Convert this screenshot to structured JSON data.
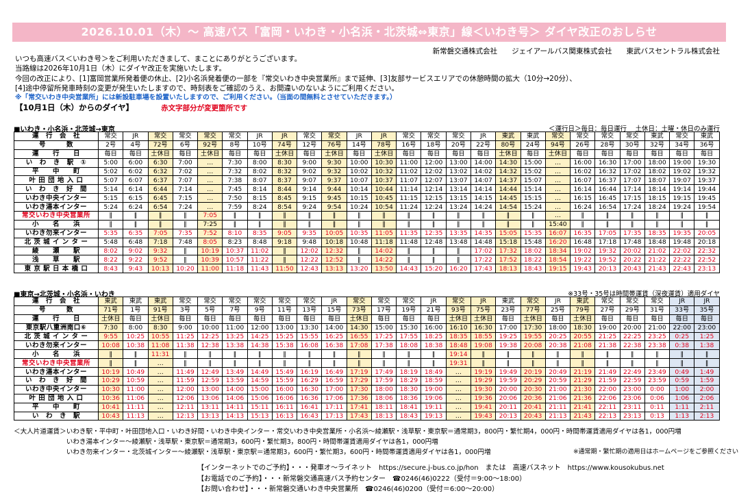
{
  "banner": "2026.10.01（木）～ 高速バス「富岡・いわき・小名浜・北茨城⇔東京」線＜いわき号＞ ダイヤ改正のおしらせ",
  "companies": "新常磐交通株式会社　　ジェイアールバス関東株式会社　　東武バスセントラル株式会社",
  "intro": [
    "いつも高速バス＜いわき号＞をご利用いただきまして、まことにありがとうございます。",
    "当路線は2026年10月1日（木）にダイヤ改正を実施いたします。",
    "今回の改正により、[1]富岡営業所発着便の休止、[2]小名浜発着便の一部を『常交いわき中央営業所』まで延伸、[3]友部サービスエリアでの休憩時間の拡大（10分→20分）、",
    "[4]途中停留所発車時刻の変更が発生いたしますので、時刻表をご確認のうえ、お間違いのないようにご利用ください。"
  ],
  "note_blue": "※「常交いわき中央営業所」には新設駐車場を設置いたしますので、ご利用ください。（当面の間無料とさせていただきます。）",
  "date_label": "【10月1日（木）からのダイヤ】",
  "red_hint": "赤文字部分が変更箇所です",
  "down": {
    "title": "■いわき・小名浜・北茨城→東京",
    "note": "＜運行日＞毎日：毎日運行　 土休日：土曜・休日のみ運行",
    "header_labels": [
      "運　行　会　社",
      "号　　　数",
      "運　　行　　日"
    ],
    "ops": [
      "常交",
      "JR",
      "常交",
      "常交",
      "常交",
      "常交",
      "JR",
      "JR",
      "常交",
      "常交",
      "JR",
      "JR",
      "常交",
      "常交",
      "常交",
      "JR",
      "東武",
      "東武",
      "常交",
      "常交",
      "常交",
      "常交",
      "東武",
      "常交",
      "東武"
    ],
    "nums": [
      "2号",
      "4号",
      "72号",
      "6号",
      "92号",
      "8号",
      "10号",
      "74号",
      "12号",
      "76号",
      "14号",
      "78号",
      "16号",
      "18号",
      "20号",
      "22号",
      "80号",
      "24号",
      "94号",
      "26号",
      "28号",
      "30号",
      "32号",
      "34号",
      "36号"
    ],
    "days": [
      "毎日",
      "毎日",
      "土休日",
      "毎日",
      "土休日",
      "毎日",
      "毎日",
      "土休日",
      "毎日",
      "土休日",
      "毎日",
      "土休日",
      "毎日",
      "毎日",
      "毎日",
      "毎日",
      "土休日",
      "毎日",
      "土休日",
      "毎日",
      "毎日",
      "毎日",
      "毎日",
      "毎日",
      "毎日"
    ],
    "hl": [
      2,
      4,
      7,
      9,
      11,
      16,
      18
    ],
    "stops": [
      {
        "name": "い　わ　き　駅　①",
        "red": false,
        "times": [
          "5:00",
          "6:00",
          "6:30",
          "7:00",
          "…",
          "7:30",
          "8:00",
          "8:30",
          "9:00",
          "9:30",
          "10:00",
          "10:30",
          "11:00",
          "12:00",
          "13:00",
          "14:00",
          "14:30",
          "15:00",
          "…",
          "16:00",
          "16:30",
          "17:00",
          "18:00",
          "19:00",
          "19:30"
        ],
        "redcells": []
      },
      {
        "name": "平　　中　　町",
        "red": false,
        "times": [
          "5:02",
          "6:02",
          "6:32",
          "7:02",
          "…",
          "7:32",
          "8:02",
          "8:32",
          "9:02",
          "9:32",
          "10:02",
          "10:32",
          "11:02",
          "12:02",
          "13:02",
          "14:02",
          "14:32",
          "15:02",
          "…",
          "16:02",
          "16:32",
          "17:02",
          "18:02",
          "19:02",
          "19:32"
        ],
        "redcells": []
      },
      {
        "name": "叶 田 団 地 入 口",
        "red": false,
        "times": [
          "5:07",
          "6:07",
          "6:37",
          "7:07",
          "…",
          "7:38",
          "8:07",
          "8:37",
          "9:07",
          "9:37",
          "10:07",
          "10:37",
          "11:07",
          "12:07",
          "13:07",
          "14:07",
          "14:37",
          "15:07",
          "…",
          "16:07",
          "16:37",
          "17:07",
          "18:07",
          "19:07",
          "19:37"
        ],
        "redcells": []
      },
      {
        "name": "い　わ　き　好　間",
        "red": false,
        "times": [
          "5:14",
          "6:14",
          "6:44",
          "7:14",
          "…",
          "7:45",
          "8:14",
          "8:44",
          "9:14",
          "9:44",
          "10:14",
          "10:44",
          "11:14",
          "12:14",
          "13:14",
          "14:14",
          "14:44",
          "15:14",
          "…",
          "16:14",
          "16:44",
          "17:14",
          "18:14",
          "19:14",
          "19:44"
        ],
        "redcells": []
      },
      {
        "name": "いわき中央インター",
        "red": false,
        "times": [
          "5:15",
          "6:15",
          "6:45",
          "7:15",
          "…",
          "7:50",
          "8:15",
          "8:45",
          "9:15",
          "9:45",
          "10:15",
          "10:45",
          "11:15",
          "12:15",
          "13:15",
          "14:15",
          "14:45",
          "15:15",
          "…",
          "16:15",
          "16:45",
          "17:15",
          "18:15",
          "19:15",
          "19:45"
        ],
        "redcells": []
      },
      {
        "name": "いわき湯本インター",
        "red": false,
        "times": [
          "5:24",
          "6:24",
          "6:54",
          "7:24",
          "…",
          "7:59",
          "8:24",
          "8:54",
          "9:24",
          "9:54",
          "10:24",
          "10:54",
          "11:24",
          "12:24",
          "13:24",
          "14:24",
          "14:54",
          "15:24",
          "…",
          "16:24",
          "16:54",
          "17:24",
          "18:24",
          "19:24",
          "19:54"
        ],
        "redcells": []
      },
      {
        "name": "常交いわき中央営業所",
        "red": true,
        "times": [
          "‖",
          "‖",
          "‖",
          "‖",
          "7:05",
          "‖",
          "‖",
          "‖",
          "‖",
          "‖",
          "‖",
          "‖",
          "‖",
          "‖",
          "‖",
          "‖",
          "‖",
          "‖",
          "…",
          "‖",
          "‖",
          "‖",
          "‖",
          "‖",
          "‖"
        ],
        "redcells": [
          4
        ]
      },
      {
        "name": "小　　名　　浜",
        "red": false,
        "times": [
          "‖",
          "‖",
          "‖",
          "‖",
          "7:25",
          "‖",
          "‖",
          "‖",
          "‖",
          "‖",
          "‖",
          "‖",
          "‖",
          "‖",
          "‖",
          "‖",
          "‖",
          "‖",
          "15:40",
          "‖",
          "‖",
          "‖",
          "‖",
          "‖",
          "‖"
        ],
        "redcells": []
      },
      {
        "name": "いわき勿来インター",
        "red": false,
        "times": [
          "5:35",
          "6:35",
          "7:05",
          "7:35",
          "7:52",
          "8:10",
          "8:35",
          "9:05",
          "9:35",
          "10:05",
          "10:35",
          "11:05",
          "11:35",
          "12:35",
          "13:35",
          "14:35",
          "15:05",
          "15:35",
          "16:07",
          "16:35",
          "17:05",
          "17:35",
          "18:35",
          "19:35",
          "20:05"
        ],
        "redcells": "all"
      },
      {
        "name": "北 茨 城 イ ン タ ー",
        "red": false,
        "times": [
          "5:48",
          "6:48",
          "7:18",
          "7:48",
          "8:05",
          "8:23",
          "8:48",
          "9:18",
          "9:48",
          "10:18",
          "10:48",
          "11:18",
          "11:48",
          "12:48",
          "13:48",
          "14:48",
          "15:18",
          "15:48",
          "16:20",
          "16:48",
          "17:18",
          "17:48",
          "18:48",
          "19:48",
          "20:18"
        ],
        "redcells": [
          4,
          18
        ]
      },
      {
        "name": "綾　　瀬　　駅",
        "red": false,
        "times": [
          "8:02",
          "9:02",
          "9:32",
          "‖",
          "10:19",
          "10:37",
          "11:02",
          "‖",
          "12:02",
          "12:32",
          "‖",
          "14:02",
          "‖",
          "‖",
          "‖",
          "17:02",
          "17:32",
          "18:02",
          "18:34",
          "19:02",
          "19:32",
          "20:02",
          "21:02",
          "22:02",
          "22:32"
        ],
        "redcells": "all"
      },
      {
        "name": "浅　　草　　駅",
        "red": false,
        "times": [
          "8:22",
          "9:22",
          "9:52",
          "‖",
          "10:39",
          "10:57",
          "11:22",
          "‖",
          "12:22",
          "12:52",
          "‖",
          "14:22",
          "‖",
          "‖",
          "‖",
          "17:22",
          "17:52",
          "18:22",
          "18:54",
          "19:22",
          "19:52",
          "20:22",
          "21:22",
          "22:22",
          "22:52"
        ],
        "redcells": "all"
      },
      {
        "name": "東 京 駅 日 本 橋 口",
        "red": false,
        "times": [
          "8:43",
          "9:43",
          "10:13",
          "10:20",
          "11:00",
          "11:18",
          "11:43",
          "11:50",
          "12:43",
          "13:13",
          "13:20",
          "13:50",
          "14:43",
          "15:20",
          "16:20",
          "17:43",
          "18:13",
          "18:43",
          "19:15",
          "19:43",
          "20:13",
          "20:43",
          "21:43",
          "22:43",
          "23:13"
        ],
        "redcells": "all"
      }
    ]
  },
  "up": {
    "title": "■東京→北茨城・小名浜・いわき",
    "note": "※33号・35号は時間帯運賃（深夜運賃）適用ダイヤ",
    "header_labels": [
      "運　行　会　社",
      "号　　　数",
      "運　　行　　日"
    ],
    "ops": [
      "東武",
      "東武",
      "東武",
      "常交",
      "常交",
      "常交",
      "常交",
      "常交",
      "常交",
      "JR",
      "常交",
      "常交",
      "常交",
      "JR",
      "常交",
      "JR",
      "東武",
      "常交",
      "JR",
      "東武",
      "常交",
      "常交",
      "常交",
      "JR",
      "JR"
    ],
    "nums": [
      "71号",
      "1号",
      "91号",
      "3号",
      "5号",
      "7号",
      "9号",
      "11号",
      "13号",
      "15号",
      "73号",
      "17号",
      "19号",
      "21号",
      "93号",
      "75号",
      "23号",
      "77号",
      "25号",
      "79号",
      "27号",
      "29号",
      "31号",
      "33号",
      "35号"
    ],
    "days": [
      "土休日",
      "毎日",
      "土休日",
      "毎日",
      "毎日",
      "毎日",
      "毎日",
      "毎日",
      "毎日",
      "毎日",
      "土休日",
      "毎日",
      "毎日",
      "毎日",
      "土休日",
      "土休日",
      "毎日",
      "土休日",
      "毎日",
      "土休日",
      "毎日",
      "毎日",
      "毎日",
      "毎日",
      "毎日"
    ],
    "hl": [
      0,
      2,
      10,
      14,
      15,
      17,
      19
    ],
    "lb": [
      23,
      24
    ],
    "stops": [
      {
        "name": "東京駅八重洲南口⑥",
        "red": false,
        "times": [
          "7:30",
          "8:00",
          "8:30",
          "9:00",
          "10:00",
          "11:00",
          "12:00",
          "13:00",
          "13:30",
          "14:00",
          "14:30",
          "15:00",
          "15:30",
          "16:00",
          "16:10",
          "16:30",
          "17:00",
          "17:30",
          "18:00",
          "18:30",
          "19:00",
          "20:00",
          "21:00",
          "22:00",
          "23:00"
        ],
        "redcells": []
      },
      {
        "name": "北 茨 城 イ ン タ ー",
        "red": false,
        "times": [
          "9:55",
          "10:25",
          "10:55",
          "11:25",
          "12:25",
          "13:25",
          "14:25",
          "15:25",
          "15:55",
          "16:25",
          "16:55",
          "17:25",
          "17:55",
          "18:25",
          "18:35",
          "18:55",
          "19:25",
          "19:55",
          "20:25",
          "20:55",
          "21:25",
          "22:25",
          "23:25",
          "0:25",
          "1:25"
        ],
        "redcells": "all"
      },
      {
        "name": "いわき勿来インター",
        "red": false,
        "times": [
          "10:08",
          "10:38",
          "11:08",
          "11:38",
          "12:38",
          "13:38",
          "14:38",
          "15:38",
          "16:08",
          "16:38",
          "17:08",
          "17:38",
          "18:08",
          "18:38",
          "18:48",
          "19:08",
          "19:38",
          "20:08",
          "20:38",
          "21:08",
          "21:38",
          "22:38",
          "23:38",
          "0:38",
          "1:38"
        ],
        "redcells": "all"
      },
      {
        "name": "小　　名　　浜",
        "red": false,
        "times": [
          "‖",
          "‖",
          "11:31",
          "‖",
          "‖",
          "‖",
          "‖",
          "‖",
          "‖",
          "‖",
          "‖",
          "‖",
          "‖",
          "‖",
          "19:14",
          "‖",
          "‖",
          "‖",
          "‖",
          "‖",
          "‖",
          "‖",
          "‖",
          "‖",
          "‖"
        ],
        "redcells": [
          2,
          14
        ]
      },
      {
        "name": "常交いわき中央営業所",
        "red": true,
        "times": [
          "‖",
          "‖",
          "…",
          "‖",
          "‖",
          "‖",
          "‖",
          "‖",
          "‖",
          "‖",
          "‖",
          "‖",
          "‖",
          "‖",
          "19:31",
          "‖",
          "‖",
          "‖",
          "‖",
          "‖",
          "‖",
          "‖",
          "‖",
          "‖",
          "‖"
        ],
        "redcells": [
          14
        ]
      },
      {
        "name": "いわき湯本インター",
        "red": false,
        "times": [
          "10:19",
          "10:49",
          "…",
          "11:49",
          "12:49",
          "13:49",
          "14:49",
          "15:49",
          "16:19",
          "16:49",
          "17:19",
          "17:49",
          "18:19",
          "18:49",
          "…",
          "19:19",
          "19:49",
          "20:19",
          "20:49",
          "21:19",
          "21:49",
          "22:49",
          "23:49",
          "0:49",
          "1:49"
        ],
        "redcells": "all"
      },
      {
        "name": "い　わ　き　好　間",
        "red": false,
        "times": [
          "10:29",
          "10:59",
          "…",
          "11:59",
          "12:59",
          "13:59",
          "14:59",
          "15:59",
          "16:29",
          "16:59",
          "17:29",
          "17:59",
          "18:29",
          "18:59",
          "…",
          "19:29",
          "19:59",
          "20:29",
          "20:59",
          "21:29",
          "21:59",
          "22:59",
          "23:59",
          "0:59",
          "1:59"
        ],
        "redcells": "all"
      },
      {
        "name": "いわき中央インター",
        "red": false,
        "times": [
          "10:30",
          "11:00",
          "…",
          "12:00",
          "13:00",
          "14:00",
          "15:00",
          "16:00",
          "16:30",
          "17:00",
          "17:30",
          "18:00",
          "18:30",
          "19:00",
          "…",
          "19:30",
          "20:00",
          "20:30",
          "21:00",
          "21:30",
          "22:00",
          "23:00",
          "0:00",
          "1:00",
          "2:00"
        ],
        "redcells": "all"
      },
      {
        "name": "叶 田 団 地 入 口",
        "red": false,
        "times": [
          "10:36",
          "11:06",
          "…",
          "12:06",
          "13:06",
          "14:06",
          "15:06",
          "16:06",
          "16:36",
          "17:06",
          "17:36",
          "18:06",
          "18:36",
          "19:06",
          "…",
          "19:36",
          "20:06",
          "20:36",
          "21:06",
          "21:36",
          "22:06",
          "23:06",
          "0:06",
          "1:06",
          "2:06"
        ],
        "redcells": "all"
      },
      {
        "name": "平　　中　　町",
        "red": false,
        "times": [
          "10:41",
          "11:11",
          "…",
          "12:11",
          "13:11",
          "14:11",
          "15:11",
          "16:11",
          "16:41",
          "17:11",
          "17:41",
          "18:11",
          "18:41",
          "19:11",
          "…",
          "19:41",
          "20:11",
          "20:41",
          "21:11",
          "21:41",
          "22:11",
          "23:11",
          "0:11",
          "1:11",
          "2:11"
        ],
        "redcells": "all"
      },
      {
        "name": "い　わ　き　駅",
        "red": false,
        "times": [
          "10:43",
          "11:13",
          "…",
          "12:13",
          "13:13",
          "14:13",
          "15:13",
          "16:13",
          "16:43",
          "17:13",
          "17:43",
          "18:13",
          "18:43",
          "19:13",
          "…",
          "19:43",
          "20:13",
          "20:43",
          "21:13",
          "21:43",
          "22:13",
          "23:13",
          "0:13",
          "1:13",
          "2:13"
        ],
        "redcells": "all"
      }
    ]
  },
  "fares": [
    "＜大人片道運賃＞いわき駅・平中町・叶田団地入口・いわき好間・いわき中央インター・常交いわき中央営業所・小名浜～綾瀬駅・浅草駅・東京駅＝通常期3，800円・繁忙期4，000円・時間帯運賃適用ダイヤは各1，000円増",
    "　　　　　　　　いわき湯本インター～綾瀬駅・浅草駅・東京駅＝通常期3，600円・繁忙期3，800円・時間帯運賃適用ダイヤは各1，000円増",
    "　　　　　　　　いわき勿来インター・北茨城インター～綾瀬駅・浅草駅・東京駅＝通常期3，600円・繁忙期3，600円・時間帯運賃適用ダイヤは各1，000円増"
  ],
  "fare_note": "※通常期・繁忙期の適用日はホームページをご参照ください",
  "contacts": [
    "【インターネットでのご予約】・・・発車オ～ライネット　https://secure.j-bus.co.jp/hon　または　高速バスネット　https://www.kousokubus.net",
    "【お電話でのご予約】・・・新常磐交通高速バス予約センター　☎0246(46)0222（受付＝9:00～18:00）",
    "【お問い合わせ】・・・新常磐交通いわき中央営業所　☎0246(46)0200（受付＝6:00～20:00）"
  ]
}
